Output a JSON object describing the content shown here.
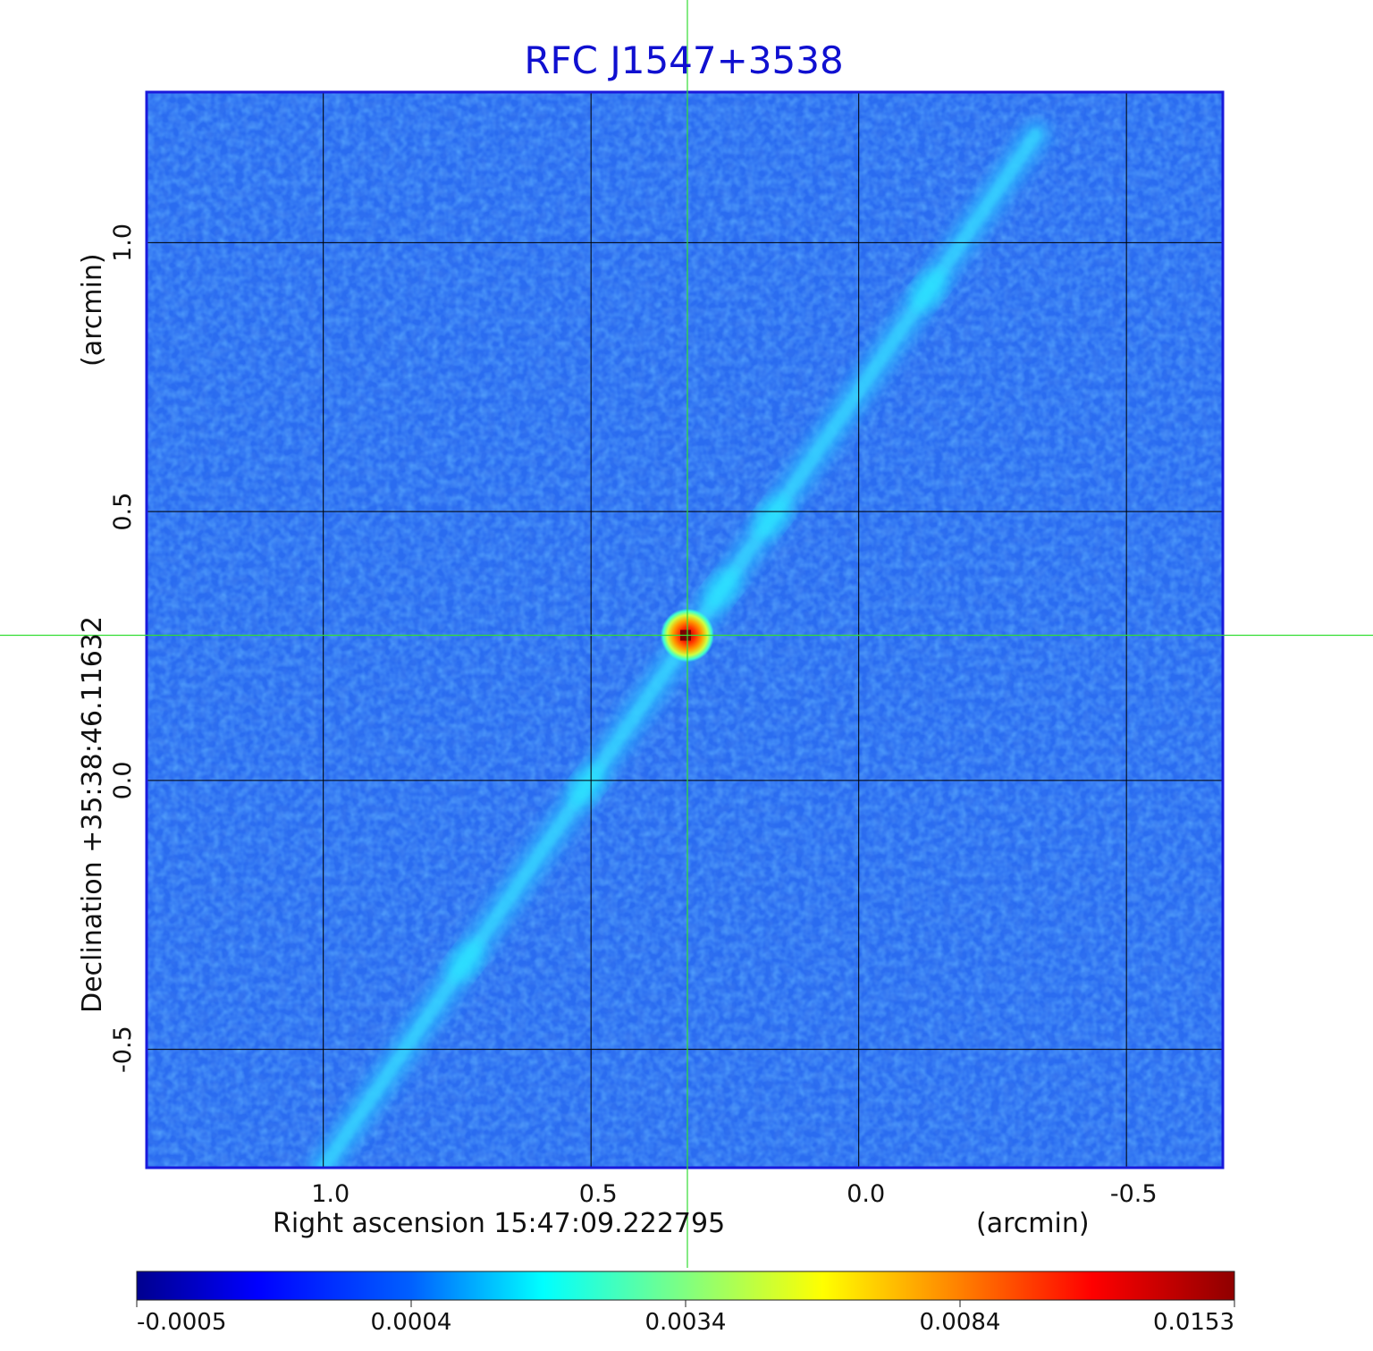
{
  "chart_data": {
    "type": "heatmap",
    "title": "RFC J1547+3538",
    "xlabel": "Right ascension  15:47:09.222795",
    "xunit": "(arcmin)",
    "ylabel": "Declination  +35:38:46.11632",
    "yunit": "(arcmin)",
    "x_ticks": [
      "1.0",
      "0.5",
      "0.0",
      "-0.5"
    ],
    "y_ticks": [
      "1.0",
      "0.5",
      "0.0",
      "-0.5"
    ],
    "xlim": [
      1.33,
      -0.68
    ],
    "ylim": [
      -0.72,
      1.28
    ],
    "grid": true,
    "colormap": "jet",
    "colorbar_ticks": [
      "-0.0005",
      "0.0004",
      "0.0034",
      "0.0084",
      "0.0153"
    ],
    "colorbar_range": [
      -0.0005,
      0.0153
    ],
    "crosshair": {
      "x": 0.32,
      "y": 0.27
    },
    "features": {
      "point_source": {
        "x": 0.32,
        "y": 0.27,
        "peak": 0.0153
      },
      "jet_ridge": {
        "from": [
          1.0,
          -0.72
        ],
        "to": [
          -0.33,
          1.2
        ],
        "level": 0.0025
      }
    },
    "colors": {
      "frame": "#1a1adc",
      "grid": "#000000",
      "crosshair": "#33dd33",
      "background_level": "#2a6cf0"
    }
  }
}
